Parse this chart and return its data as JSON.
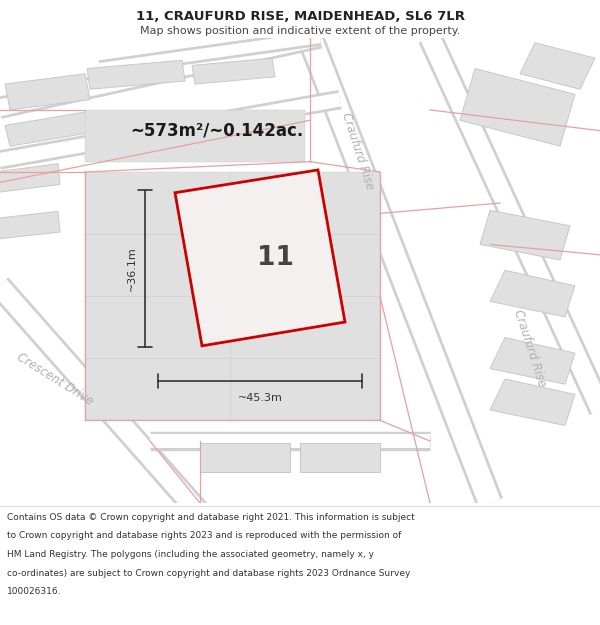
{
  "title": "11, CRAUFURD RISE, MAIDENHEAD, SL6 7LR",
  "subtitle": "Map shows position and indicative extent of the property.",
  "footer_lines": [
    "Contains OS data © Crown copyright and database right 2021. This information is subject",
    "to Crown copyright and database rights 2023 and is reproduced with the permission of",
    "HM Land Registry. The polygons (including the associated geometry, namely x, y",
    "co-ordinates) are subject to Crown copyright and database rights 2023 Ordnance Survey",
    "100026316."
  ],
  "map_bg": "#efefef",
  "road_color": "#ffffff",
  "road_outline_color": "#d0d0d0",
  "property_outline_color": "#cc0000",
  "property_fill_color": "#f5f0f0",
  "block_color": "#e0e0e0",
  "block_edge_color": "#c8c8c8",
  "pink_line_color": "#e8a0a0",
  "street_label_color": "#b0b0b0",
  "dim_color": "#333333",
  "area_text": "~573m²/~0.142ac.",
  "dim_width": "~45.3m",
  "dim_height": "~36.1m",
  "property_label": "11",
  "street_top": "Craufurd Rise",
  "street_left": "Crescent Drive",
  "street_right": "Craufurd Rise",
  "title_fontsize": 9.5,
  "subtitle_fontsize": 8,
  "footer_fontsize": 6.5
}
